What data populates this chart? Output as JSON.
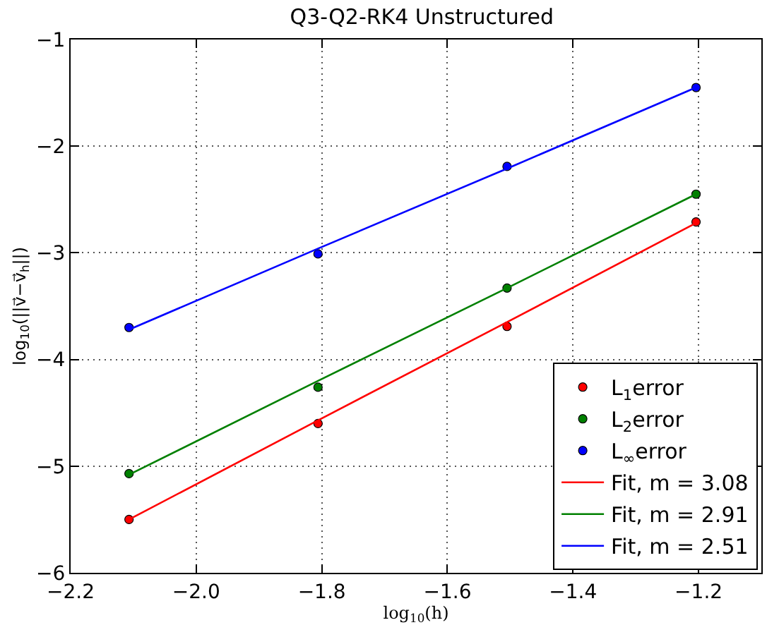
{
  "chart_data": {
    "type": "scatter",
    "title": "Q3-Q2-RK4 Unstructured",
    "xlabel": "log$_{10}$(h)",
    "ylabel": "log$_{10}$(||v⃗−v⃗$_{h}$||)",
    "x": [
      -2.107,
      -1.806,
      -1.505,
      -1.204
    ],
    "series": [
      {
        "name": "L$_{1}$error",
        "marker": "circle",
        "color": "#ff0000",
        "values": [
          -5.5,
          -4.6,
          -3.69,
          -2.71
        ]
      },
      {
        "name": "L$_{2}$error",
        "marker": "circle",
        "color": "#008000",
        "values": [
          -5.07,
          -4.26,
          -3.33,
          -2.45
        ]
      },
      {
        "name": "L$_{∞}$error",
        "marker": "circle",
        "color": "#0000ff",
        "values": [
          -3.7,
          -3.01,
          -2.19,
          -1.45
        ]
      },
      {
        "name": "Fit, m = 3.08",
        "type": "line",
        "marker": "none",
        "line_style": "solid",
        "color": "#ff0000",
        "values": [
          -5.5,
          -4.57,
          -3.65,
          -2.72
        ]
      },
      {
        "name": "Fit, m = 2.91",
        "type": "line",
        "marker": "none",
        "line_style": "solid",
        "color": "#008000",
        "values": [
          -5.08,
          -4.2,
          -3.33,
          -2.45
        ]
      },
      {
        "name": "Fit, m = 2.51",
        "type": "line",
        "marker": "none",
        "line_style": "solid",
        "color": "#0000ff",
        "values": [
          -3.72,
          -2.96,
          -2.21,
          -1.45
        ]
      }
    ],
    "xlim": [
      -2.2,
      -1.1
    ],
    "xticks": [
      -2.2,
      {
        "value": -2.0,
        "label": "−2.0"
      },
      -1.8,
      -1.6,
      -1.4,
      -1.2
    ],
    "ylim": [
      -6,
      -1
    ],
    "yticks": [
      -6,
      -5,
      -4,
      -3,
      -2,
      -1
    ],
    "grid": true,
    "legend": "bottom right"
  }
}
